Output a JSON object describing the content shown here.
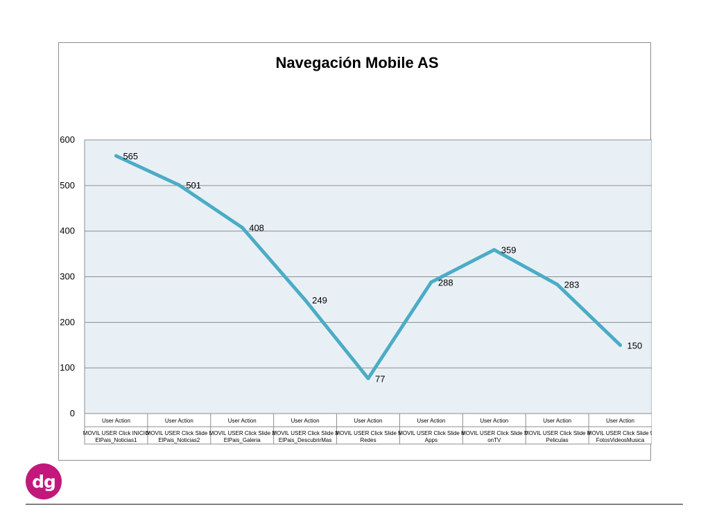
{
  "chart_data": {
    "type": "line",
    "title": "Navegación Mobile AS",
    "ylim": [
      0,
      600
    ],
    "yticks": [
      "0",
      "100",
      "200",
      "300",
      "400",
      "500",
      "600"
    ],
    "grid": true,
    "legend": "none",
    "categories": [
      {
        "line1": "User Action",
        "line2": "MOVIL USER Click INICIO",
        "line3": "ElPais_Noticias1"
      },
      {
        "line1": "User Action",
        "line2": "MOVIL USER Click Slide 1",
        "line3": "ElPais_Noticias2"
      },
      {
        "line1": "User Action",
        "line2": "MOVIL USER Click Slide 2",
        "line3": "ElPais_Galeria"
      },
      {
        "line1": "User Action",
        "line2": "MOVIL USER Click Slide 3",
        "line3": "ElPais_DescubrirMas"
      },
      {
        "line1": "User Action",
        "line2": "MOVIL USER Click Slide 5",
        "line3": "Redes"
      },
      {
        "line1": "User Action",
        "line2": "MOVIL USER Click Slide 6",
        "line3": "Apps"
      },
      {
        "line1": "User Action",
        "line2": "MOVIL USER Click Slide 7",
        "line3": "onTV"
      },
      {
        "line1": "User Action",
        "line2": "MOVIL USER Click Slide 8",
        "line3": "Peliculas"
      },
      {
        "line1": "User Action",
        "line2": "MOVIL USER Click Slide 9",
        "line3": "FotosVideosMusica"
      }
    ],
    "series": [
      {
        "values": [
          565,
          501,
          408,
          249,
          77,
          288,
          359,
          283,
          150
        ],
        "color": "#4bacc6"
      }
    ],
    "plot_background": "#e9f0f5",
    "grid_color": "#8c8c8c"
  },
  "logo": {
    "text": "dg",
    "color": "#c2187c"
  }
}
